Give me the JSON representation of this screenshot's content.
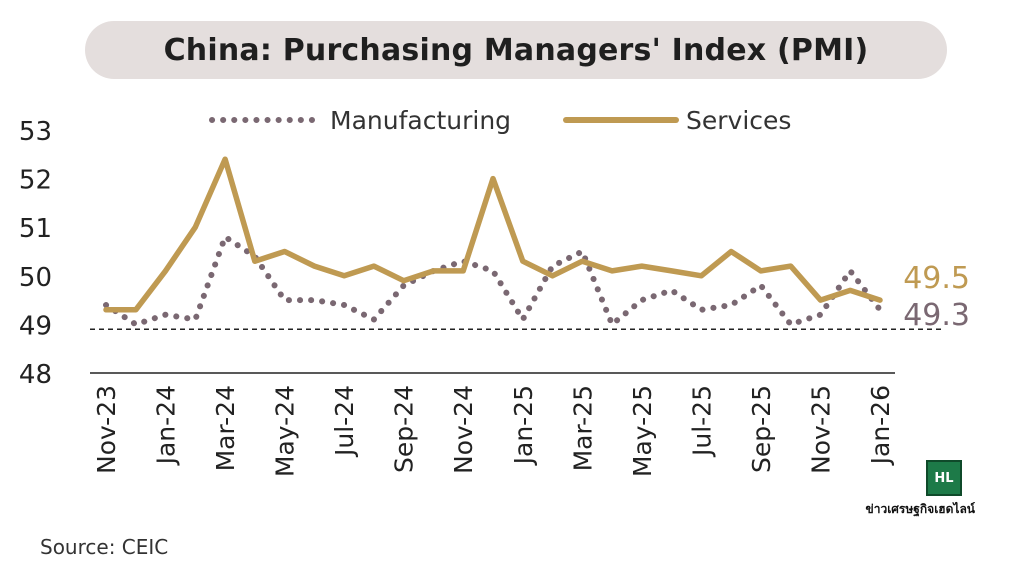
{
  "title": "China: Purchasing Managers' Index (PMI)",
  "source": "Source: CEIC",
  "logo": {
    "mark": "HL",
    "text": "ข่าวเศรษฐกิจเฮดไลน์"
  },
  "colors": {
    "manufacturing": "#7a6872",
    "services": "#bf9a52",
    "axis": "#222222"
  },
  "chart_data": {
    "type": "line",
    "title": "China: Purchasing Managers' Index (PMI)",
    "xlabel": "",
    "ylabel": "",
    "ylim": [
      48,
      53
    ],
    "yticks": [
      48,
      49,
      50,
      51,
      52,
      53
    ],
    "x": [
      "Nov-23",
      "Dec-23",
      "Jan-24",
      "Feb-24",
      "Mar-24",
      "Apr-24",
      "May-24",
      "Jun-24",
      "Jul-24",
      "Aug-24",
      "Sep-24",
      "Oct-24",
      "Nov-24",
      "Dec-24",
      "Jan-25",
      "Feb-25",
      "Mar-25",
      "Apr-25",
      "May-25",
      "Jun-25",
      "Jul-25",
      "Aug-25",
      "Sep-25",
      "Oct-25",
      "Nov-25",
      "Dec-25",
      "Jan-26"
    ],
    "tick_labels": [
      "Nov-23",
      "Jan-24",
      "Mar-24",
      "May-24",
      "Jul-24",
      "Sep-24",
      "Nov-24",
      "Jan-25",
      "Mar-25",
      "May-25",
      "Jul-25",
      "Sep-25",
      "Nov-25",
      "Jan-26"
    ],
    "legend_position": "top",
    "series": [
      {
        "name": "Manufacturing",
        "style": "dotted",
        "values": [
          49.4,
          49.0,
          49.2,
          49.1,
          50.8,
          50.4,
          49.5,
          49.5,
          49.4,
          49.1,
          49.8,
          50.1,
          50.3,
          50.1,
          49.1,
          50.2,
          50.5,
          49.0,
          49.5,
          49.7,
          49.3,
          49.4,
          49.8,
          49.0,
          49.2,
          50.1,
          49.3
        ]
      },
      {
        "name": "Services",
        "style": "solid",
        "values": [
          49.3,
          49.3,
          50.1,
          51.0,
          52.4,
          50.3,
          50.5,
          50.2,
          50.0,
          50.2,
          49.9,
          50.1,
          50.1,
          52.0,
          50.3,
          50.0,
          50.3,
          50.1,
          50.2,
          50.1,
          50.0,
          50.5,
          50.1,
          50.2,
          49.5,
          49.7,
          49.5
        ]
      }
    ],
    "end_labels": [
      {
        "series": "Services",
        "text": "49.5"
      },
      {
        "series": "Manufacturing",
        "text": "49.3"
      }
    ],
    "reference_line": {
      "y": 48.9,
      "style": "dashed"
    },
    "grid": false
  }
}
